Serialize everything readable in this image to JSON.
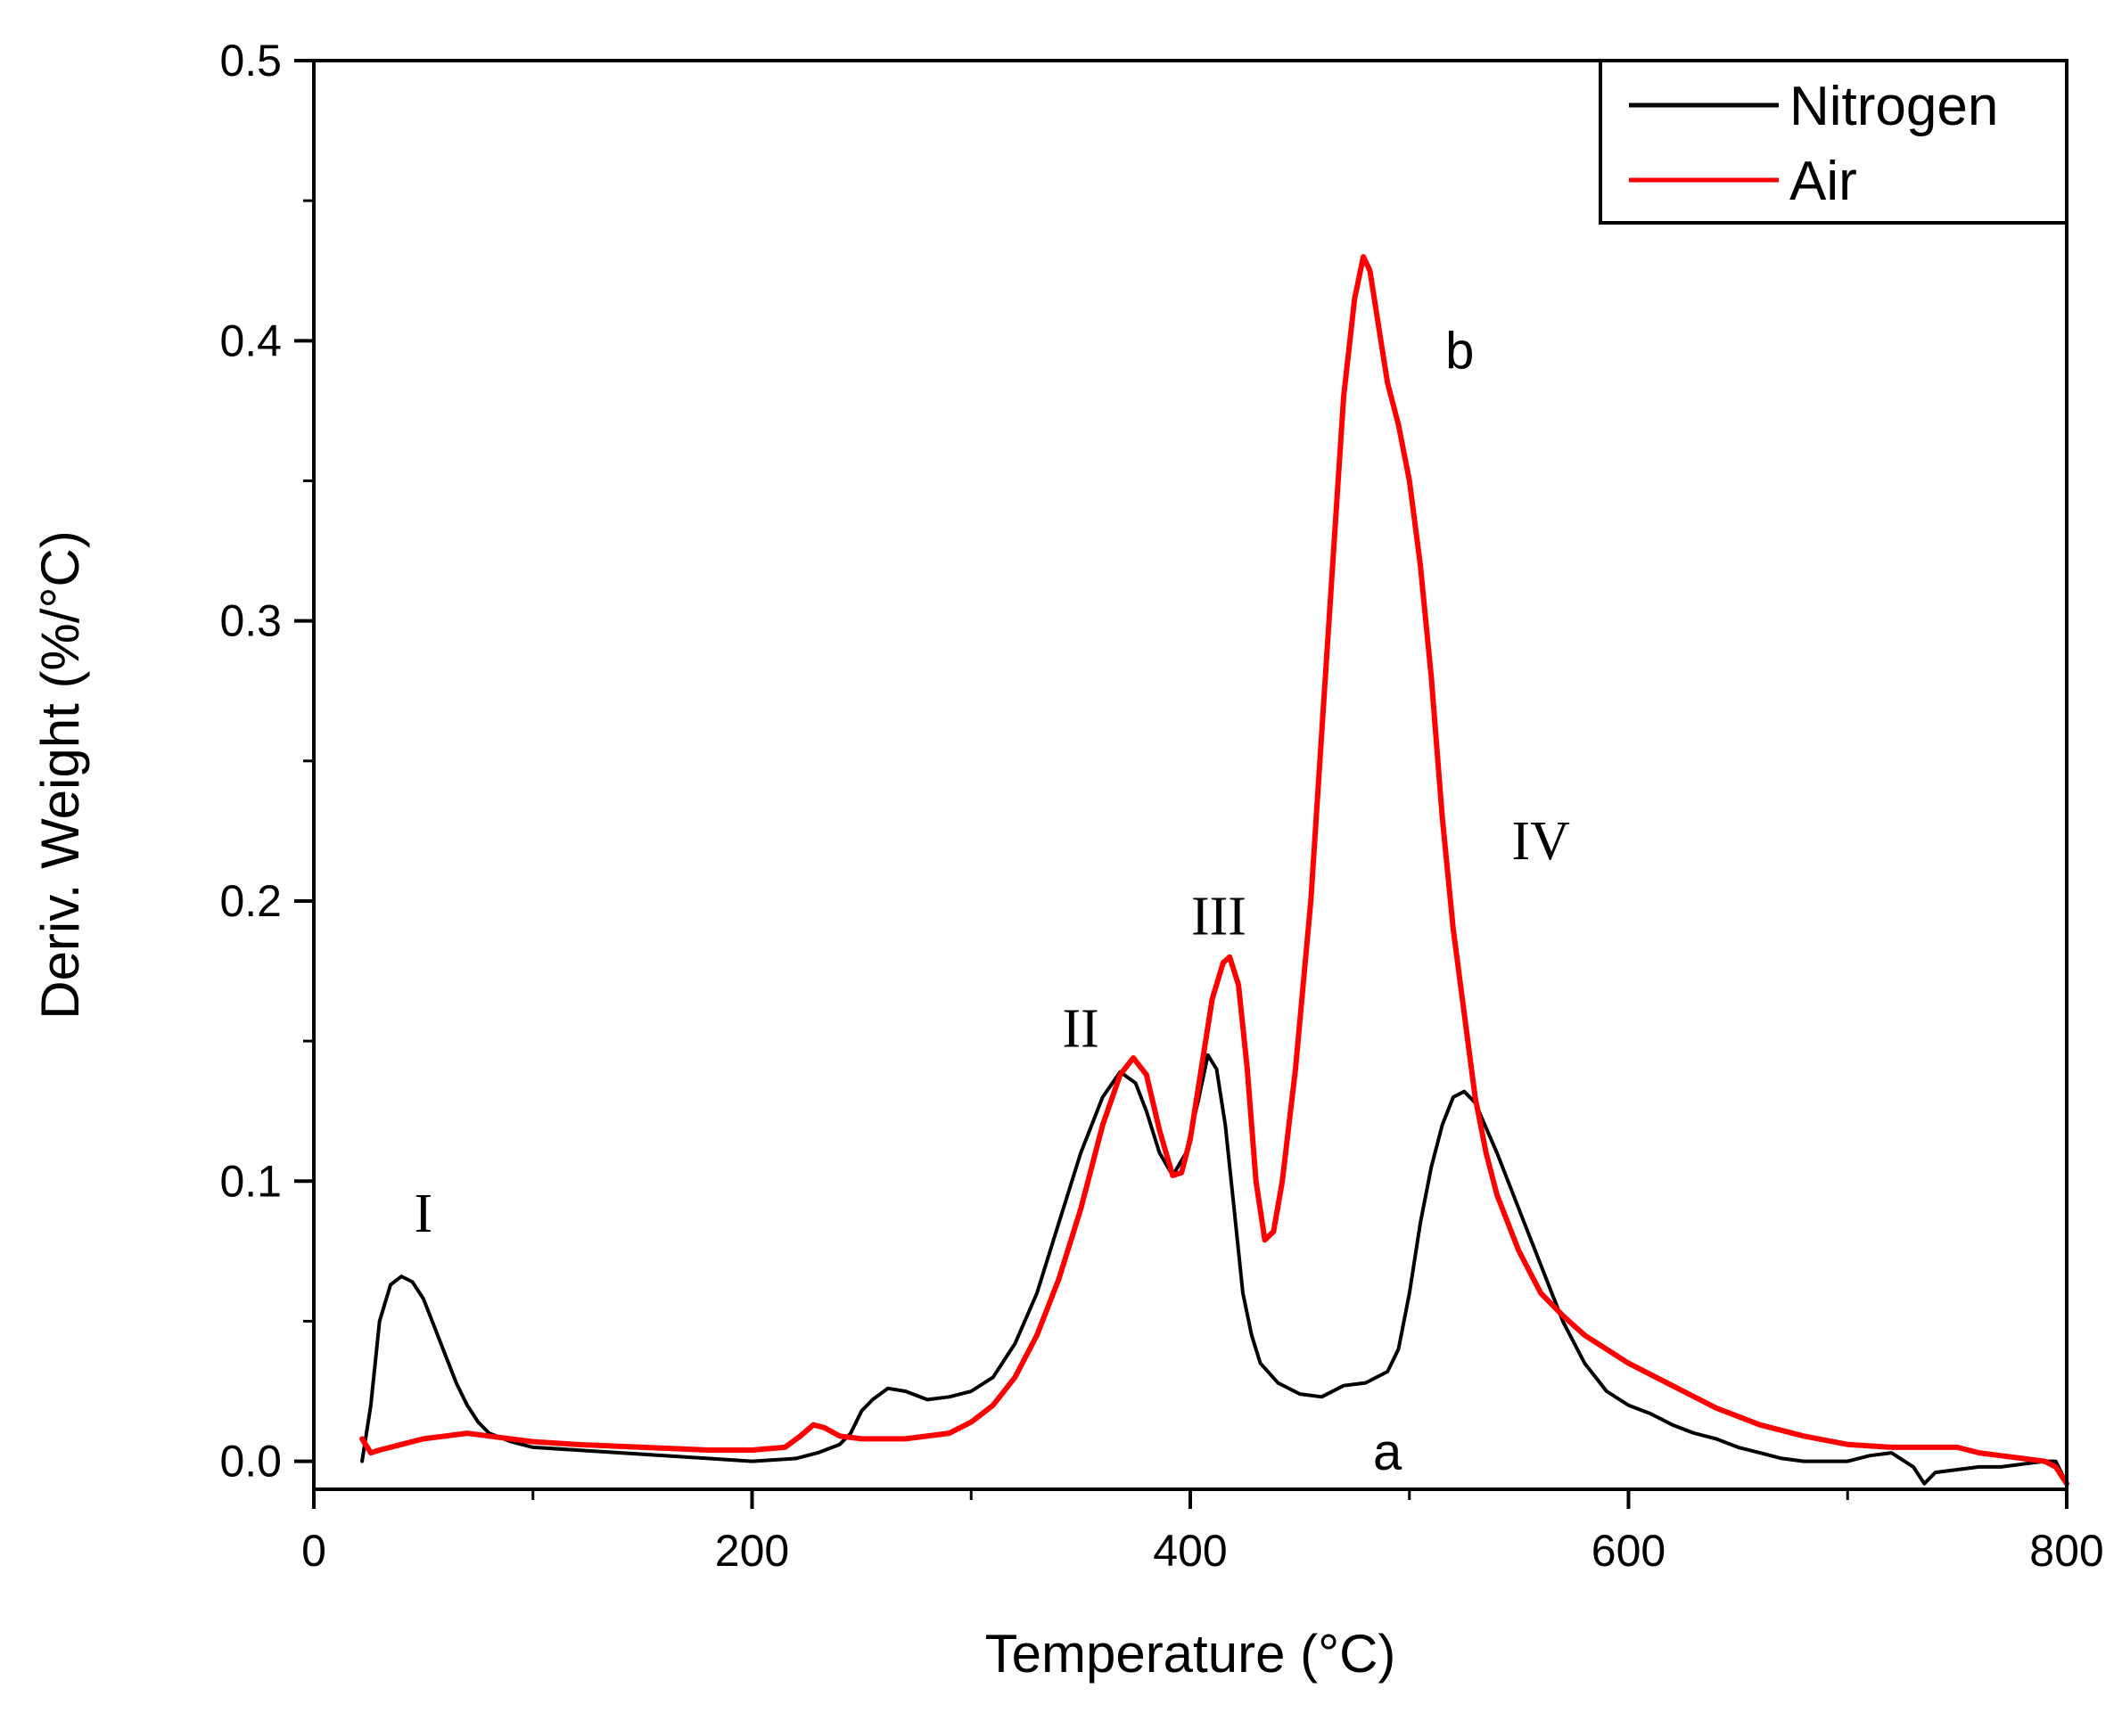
{
  "chart_data": {
    "type": "line",
    "xlabel": "Temperature (°C)",
    "ylabel": "Deriv. Weight (%/°C)",
    "xlim": [
      0,
      800
    ],
    "ylim": [
      -0.01,
      0.5
    ],
    "x_ticks": [
      0,
      200,
      400,
      600,
      800
    ],
    "x_tick_labels": [
      "0",
      "200",
      "400",
      "600",
      "800"
    ],
    "y_ticks": [
      0.0,
      0.1,
      0.2,
      0.3,
      0.4,
      0.5
    ],
    "y_tick_labels": [
      "0.0",
      "0.1",
      "0.2",
      "0.3",
      "0.4",
      "0.5"
    ],
    "grid": false,
    "legend_position": "top-right",
    "series": [
      {
        "name": "Nitrogen",
        "color": "#000000",
        "points": [
          [
            22,
            0.0
          ],
          [
            26,
            0.02
          ],
          [
            30,
            0.05
          ],
          [
            35,
            0.063
          ],
          [
            40,
            0.066
          ],
          [
            45,
            0.064
          ],
          [
            50,
            0.058
          ],
          [
            55,
            0.048
          ],
          [
            60,
            0.038
          ],
          [
            65,
            0.028
          ],
          [
            70,
            0.02
          ],
          [
            75,
            0.014
          ],
          [
            80,
            0.01
          ],
          [
            90,
            0.007
          ],
          [
            100,
            0.005
          ],
          [
            120,
            0.004
          ],
          [
            140,
            0.003
          ],
          [
            160,
            0.002
          ],
          [
            180,
            0.001
          ],
          [
            200,
            0.0
          ],
          [
            220,
            0.001
          ],
          [
            230,
            0.003
          ],
          [
            240,
            0.006
          ],
          [
            245,
            0.01
          ],
          [
            250,
            0.018
          ],
          [
            255,
            0.022
          ],
          [
            262,
            0.026
          ],
          [
            270,
            0.025
          ],
          [
            280,
            0.022
          ],
          [
            290,
            0.023
          ],
          [
            300,
            0.025
          ],
          [
            310,
            0.03
          ],
          [
            320,
            0.042
          ],
          [
            330,
            0.06
          ],
          [
            340,
            0.085
          ],
          [
            350,
            0.11
          ],
          [
            360,
            0.13
          ],
          [
            368,
            0.139
          ],
          [
            375,
            0.135
          ],
          [
            380,
            0.125
          ],
          [
            386,
            0.11
          ],
          [
            392,
            0.102
          ],
          [
            398,
            0.11
          ],
          [
            404,
            0.13
          ],
          [
            408,
            0.145
          ],
          [
            412,
            0.14
          ],
          [
            416,
            0.12
          ],
          [
            420,
            0.09
          ],
          [
            424,
            0.06
          ],
          [
            428,
            0.045
          ],
          [
            432,
            0.035
          ],
          [
            440,
            0.028
          ],
          [
            450,
            0.024
          ],
          [
            460,
            0.023
          ],
          [
            470,
            0.027
          ],
          [
            480,
            0.028
          ],
          [
            490,
            0.032
          ],
          [
            495,
            0.04
          ],
          [
            500,
            0.06
          ],
          [
            505,
            0.085
          ],
          [
            510,
            0.105
          ],
          [
            515,
            0.12
          ],
          [
            520,
            0.13
          ],
          [
            525,
            0.132
          ],
          [
            530,
            0.128
          ],
          [
            540,
            0.11
          ],
          [
            550,
            0.09
          ],
          [
            560,
            0.07
          ],
          [
            570,
            0.05
          ],
          [
            580,
            0.035
          ],
          [
            590,
            0.025
          ],
          [
            600,
            0.02
          ],
          [
            610,
            0.017
          ],
          [
            620,
            0.013
          ],
          [
            630,
            0.01
          ],
          [
            640,
            0.008
          ],
          [
            650,
            0.005
          ],
          [
            660,
            0.003
          ],
          [
            670,
            0.001
          ],
          [
            680,
            0.0
          ],
          [
            700,
            0.0
          ],
          [
            710,
            0.002
          ],
          [
            720,
            0.003
          ],
          [
            730,
            -0.002
          ],
          [
            735,
            -0.008
          ],
          [
            740,
            -0.004
          ],
          [
            750,
            -0.003
          ],
          [
            760,
            -0.002
          ],
          [
            770,
            -0.002
          ],
          [
            780,
            -0.001
          ],
          [
            790,
            0.0
          ],
          [
            795,
            0.0
          ],
          [
            800,
            -0.008
          ]
        ]
      },
      {
        "name": "Air",
        "color": "#ff0000",
        "points": [
          [
            22,
            0.008
          ],
          [
            26,
            0.003
          ],
          [
            30,
            0.004
          ],
          [
            40,
            0.006
          ],
          [
            50,
            0.008
          ],
          [
            60,
            0.009
          ],
          [
            70,
            0.01
          ],
          [
            80,
            0.009
          ],
          [
            100,
            0.007
          ],
          [
            120,
            0.006
          ],
          [
            150,
            0.005
          ],
          [
            180,
            0.004
          ],
          [
            200,
            0.004
          ],
          [
            215,
            0.005
          ],
          [
            222,
            0.009
          ],
          [
            228,
            0.013
          ],
          [
            233,
            0.012
          ],
          [
            240,
            0.009
          ],
          [
            250,
            0.008
          ],
          [
            270,
            0.008
          ],
          [
            290,
            0.01
          ],
          [
            300,
            0.014
          ],
          [
            310,
            0.02
          ],
          [
            320,
            0.03
          ],
          [
            330,
            0.045
          ],
          [
            340,
            0.065
          ],
          [
            350,
            0.09
          ],
          [
            360,
            0.12
          ],
          [
            368,
            0.138
          ],
          [
            374,
            0.144
          ],
          [
            380,
            0.138
          ],
          [
            386,
            0.118
          ],
          [
            392,
            0.102
          ],
          [
            396,
            0.103
          ],
          [
            400,
            0.115
          ],
          [
            405,
            0.14
          ],
          [
            410,
            0.165
          ],
          [
            415,
            0.178
          ],
          [
            418,
            0.18
          ],
          [
            422,
            0.17
          ],
          [
            426,
            0.14
          ],
          [
            430,
            0.1
          ],
          [
            434,
            0.079
          ],
          [
            438,
            0.082
          ],
          [
            442,
            0.1
          ],
          [
            448,
            0.14
          ],
          [
            455,
            0.2
          ],
          [
            460,
            0.26
          ],
          [
            465,
            0.32
          ],
          [
            470,
            0.38
          ],
          [
            475,
            0.415
          ],
          [
            479,
            0.43
          ],
          [
            482,
            0.425
          ],
          [
            486,
            0.405
          ],
          [
            490,
            0.385
          ],
          [
            495,
            0.37
          ],
          [
            500,
            0.35
          ],
          [
            505,
            0.32
          ],
          [
            510,
            0.28
          ],
          [
            515,
            0.23
          ],
          [
            520,
            0.19
          ],
          [
            525,
            0.16
          ],
          [
            530,
            0.13
          ],
          [
            535,
            0.11
          ],
          [
            540,
            0.095
          ],
          [
            550,
            0.075
          ],
          [
            560,
            0.06
          ],
          [
            570,
            0.052
          ],
          [
            580,
            0.045
          ],
          [
            600,
            0.035
          ],
          [
            620,
            0.027
          ],
          [
            640,
            0.019
          ],
          [
            660,
            0.013
          ],
          [
            680,
            0.009
          ],
          [
            700,
            0.006
          ],
          [
            720,
            0.005
          ],
          [
            740,
            0.005
          ],
          [
            750,
            0.005
          ],
          [
            760,
            0.003
          ],
          [
            770,
            0.002
          ],
          [
            780,
            0.001
          ],
          [
            790,
            0.0
          ],
          [
            795,
            -0.002
          ],
          [
            800,
            -0.008
          ]
        ]
      }
    ],
    "annotations": [
      {
        "text": "I",
        "x": 50,
        "y": 0.082,
        "style": "roman"
      },
      {
        "text": "II",
        "x": 350,
        "y": 0.148,
        "style": "roman"
      },
      {
        "text": "III",
        "x": 413,
        "y": 0.188,
        "style": "roman"
      },
      {
        "text": "IV",
        "x": 560,
        "y": 0.215,
        "style": "roman"
      },
      {
        "text": "a",
        "x": 490,
        "y": -0.003,
        "style": "letter"
      },
      {
        "text": "b",
        "x": 523,
        "y": 0.39,
        "style": "letter"
      }
    ]
  }
}
